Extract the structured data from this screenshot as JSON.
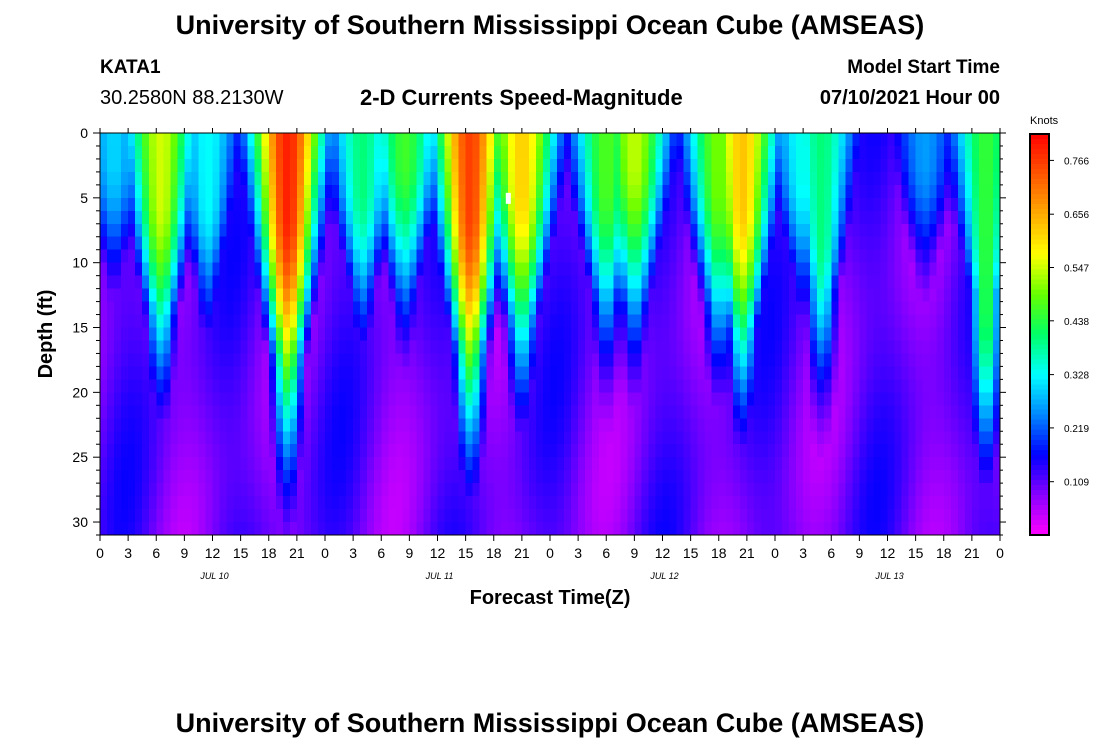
{
  "page": {
    "title": "University of Southern Mississippi Ocean Cube (AMSEAS)",
    "footer_title": "University of Southern Mississippi Ocean Cube (AMSEAS)",
    "station_id": "KATA1",
    "station_coords": "30.2580N  88.2130W",
    "model_start_label": "Model Start Time",
    "model_start_value": "07/10/2021 Hour 00"
  },
  "chart_data": {
    "type": "heatmap",
    "title": "2-D Currents Speed-Magnitude",
    "xlabel": "Forecast Time(Z)",
    "ylabel": "Depth (ft)",
    "x_range_hours": [
      0,
      96
    ],
    "ylim": [
      0,
      31
    ],
    "y_inverted": true,
    "x_ticks": [
      "0",
      "3",
      "6",
      "9",
      "12",
      "15",
      "18",
      "21",
      "0",
      "3",
      "6",
      "9",
      "12",
      "15",
      "18",
      "21",
      "0",
      "3",
      "6",
      "9",
      "12",
      "15",
      "18",
      "21",
      "0",
      "3",
      "6",
      "9",
      "12",
      "15",
      "18",
      "21",
      "0"
    ],
    "date_labels": [
      {
        "label": "JUL 10",
        "hour": 12
      },
      {
        "label": "JUL 11",
        "hour": 36
      },
      {
        "label": "JUL 12",
        "hour": 60
      },
      {
        "label": "JUL 13",
        "hour": 84
      }
    ],
    "y_ticks": [
      0,
      5,
      10,
      15,
      20,
      25,
      30
    ],
    "colorbar": {
      "unit": "Knots",
      "ticks": [
        0.766,
        0.656,
        0.547,
        0.438,
        0.328,
        0.219,
        0.109
      ],
      "range": [
        0.0,
        0.82
      ],
      "colors": [
        "#ff00ff",
        "#8800ff",
        "#0000ff",
        "#0088ff",
        "#00ffff",
        "#00ff66",
        "#66ff00",
        "#ffff00",
        "#ffaa00",
        "#ff5500",
        "#ff0000"
      ]
    },
    "peaks": [
      {
        "hour": 1.5,
        "depth": 2,
        "speed": 0.3
      },
      {
        "hour": 6.5,
        "depth": 5,
        "speed": 0.55
      },
      {
        "hour": 11.5,
        "depth": 5,
        "speed": 0.33
      },
      {
        "hour": 20,
        "depth": 6,
        "speed": 0.79
      },
      {
        "hour": 28,
        "depth": 4,
        "speed": 0.4
      },
      {
        "hour": 32.5,
        "depth": 2,
        "speed": 0.46
      },
      {
        "hour": 39.5,
        "depth": 6,
        "speed": 0.76
      },
      {
        "hour": 45,
        "depth": 4,
        "speed": 0.62
      },
      {
        "hour": 54,
        "depth": 4,
        "speed": 0.47
      },
      {
        "hour": 57,
        "depth": 2,
        "speed": 0.54
      },
      {
        "hour": 66,
        "depth": 4,
        "speed": 0.5
      },
      {
        "hour": 68.5,
        "depth": 5,
        "speed": 0.63
      },
      {
        "hour": 75,
        "depth": 3,
        "speed": 0.34
      },
      {
        "hour": 77,
        "depth": 8,
        "speed": 0.4
      },
      {
        "hour": 88,
        "depth": 2,
        "speed": 0.26
      },
      {
        "hour": 94.5,
        "depth": 13,
        "speed": 0.45
      }
    ],
    "marker": {
      "hour": 43.5,
      "depth": 5
    }
  }
}
